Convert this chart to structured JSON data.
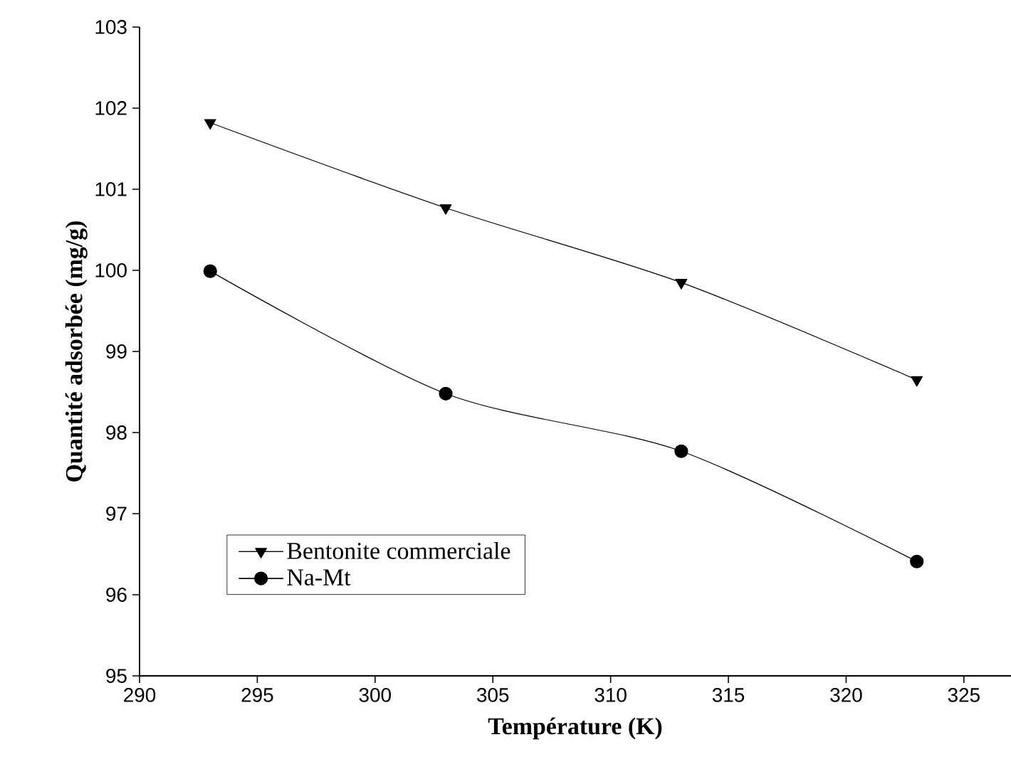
{
  "chart_data": {
    "type": "line",
    "xlabel": "Température (K)",
    "ylabel": "Quantité adsorbée (mg/g)",
    "x": [
      293,
      303,
      313,
      323
    ],
    "series": [
      {
        "name": "Bentonite commerciale",
        "color": "#000000",
        "marker": "triangle",
        "values": [
          101.82,
          100.77,
          99.85,
          98.65
        ]
      },
      {
        "name": "Na-Mt",
        "color": "#000000",
        "marker": "circle",
        "values": [
          99.99,
          98.48,
          97.77,
          96.41
        ]
      }
    ],
    "xlim": [
      290,
      327
    ],
    "xticks": [
      290,
      295,
      300,
      305,
      310,
      315,
      320,
      325
    ],
    "ylim": [
      95,
      103
    ],
    "yticks": [
      95,
      96,
      97,
      98,
      99,
      100,
      101,
      102,
      103
    ],
    "legend": "bottom left",
    "grid": false,
    "line_style": "solid"
  }
}
